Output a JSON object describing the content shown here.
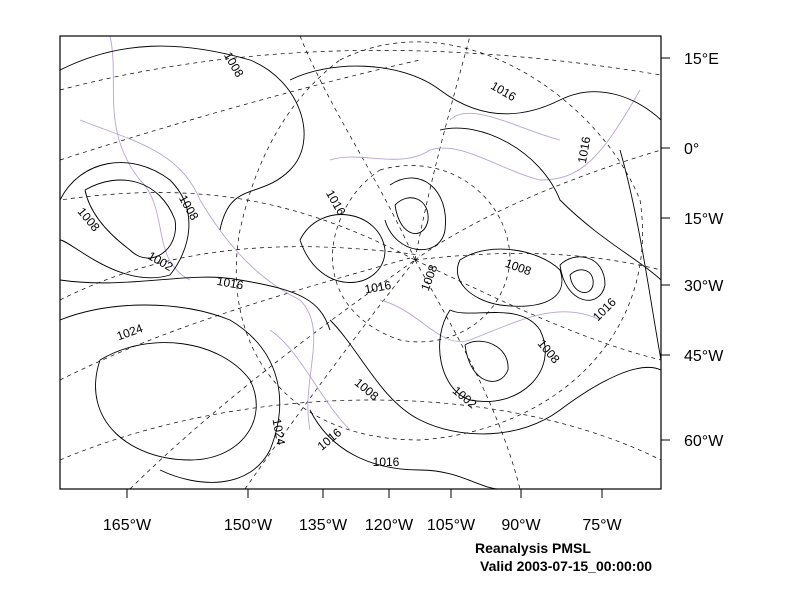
{
  "axis": {
    "right_labels": [
      "15°E",
      "0°",
      "15°W",
      "30°W",
      "45°W",
      "60°W"
    ],
    "bottom_labels": [
      "165°W",
      "150°W",
      "135°W",
      "120°W",
      "105°W",
      "90°W",
      "75°W"
    ]
  },
  "contour_labels": [
    1008,
    1016,
    1016,
    1016,
    1008,
    1008,
    1002,
    1016,
    1008,
    1008,
    1016,
    1016,
    1024,
    1008,
    1002,
    1008,
    1024,
    1016,
    1016
  ],
  "caption": {
    "title": "Reanalysis PMSL",
    "valid": "Valid 2003-07-15_00:00:00"
  }
}
